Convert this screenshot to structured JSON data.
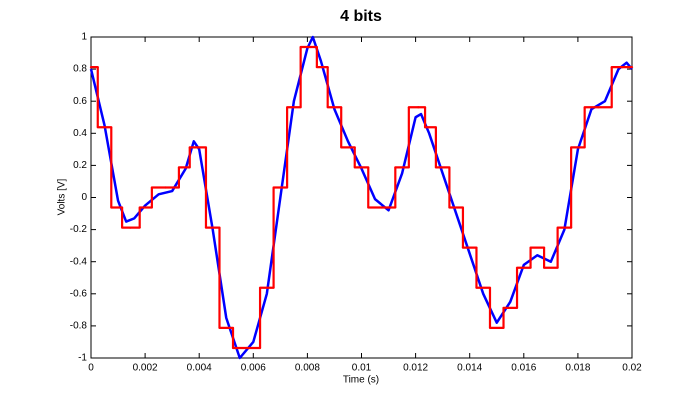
{
  "chart_data": {
    "type": "line",
    "title": "4 bits",
    "xlabel": "Time (s)",
    "ylabel": "Volts [V]",
    "x": [
      0,
      0.0005,
      0.001,
      0.0013,
      0.0016,
      0.002,
      0.0025,
      0.003,
      0.0035,
      0.0038,
      0.004,
      0.0045,
      0.005,
      0.0055,
      0.006,
      0.0065,
      0.007,
      0.0075,
      0.008,
      0.0082,
      0.0085,
      0.009,
      0.0095,
      0.01,
      0.0105,
      0.011,
      0.0115,
      0.012,
      0.0122,
      0.0125,
      0.013,
      0.0135,
      0.014,
      0.0145,
      0.015,
      0.0155,
      0.016,
      0.0165,
      0.017,
      0.0175,
      0.018,
      0.0185,
      0.019,
      0.0195,
      0.0198,
      0.02
    ],
    "series": [
      {
        "color": "#0000ff",
        "drawstyle": "line",
        "values": [
          0.8,
          0.45,
          -0.02,
          -0.15,
          -0.13,
          -0.05,
          0.02,
          0.04,
          0.18,
          0.35,
          0.3,
          -0.2,
          -0.75,
          -1,
          -0.9,
          -0.6,
          0,
          0.6,
          0.93,
          1,
          0.85,
          0.55,
          0.35,
          0.18,
          -0.01,
          -0.08,
          0.15,
          0.5,
          0.52,
          0.4,
          0.15,
          -0.1,
          -0.35,
          -0.6,
          -0.78,
          -0.65,
          -0.42,
          -0.36,
          -0.4,
          -0.2,
          0.3,
          0.55,
          0.6,
          0.8,
          0.84,
          0.8
        ]
      },
      {
        "color": "#ff0000",
        "drawstyle": "steps-mid",
        "values": [
          0.8125,
          0.4375,
          -0.0625,
          -0.1875,
          -0.1875,
          -0.0625,
          0.0625,
          0.0625,
          0.1875,
          0.3125,
          0.3125,
          -0.1875,
          -0.8125,
          -0.9375,
          -0.9375,
          -0.5625,
          0.0625,
          0.5625,
          0.9375,
          0.9375,
          0.8125,
          0.5625,
          0.3125,
          0.1875,
          -0.0625,
          -0.0625,
          0.1875,
          0.5625,
          0.5625,
          0.4375,
          0.1875,
          -0.0625,
          -0.3125,
          -0.5625,
          -0.8125,
          -0.6875,
          -0.4375,
          -0.3125,
          -0.4375,
          -0.1875,
          0.3125,
          0.5625,
          0.5625,
          0.8125,
          0.8125,
          0.8125
        ]
      }
    ],
    "xlim": [
      0,
      0.02
    ],
    "xticks": [
      0,
      0.002,
      0.004,
      0.006,
      0.008,
      0.01,
      0.012,
      0.014,
      0.016,
      0.018,
      0.02
    ],
    "ylim": [
      -1,
      1
    ],
    "yticks": [
      -1,
      -0.8,
      -0.6,
      -0.4,
      -0.2,
      0,
      0.2,
      0.4,
      0.6,
      0.8,
      1
    ],
    "grid": false
  }
}
